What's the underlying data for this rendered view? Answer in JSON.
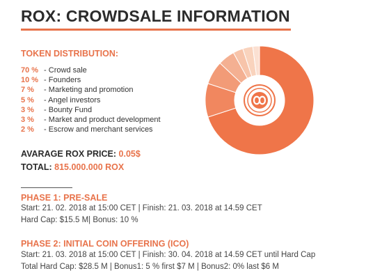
{
  "title": "ROX: CROWDSALE INFORMATION",
  "distribution": {
    "heading": "TOKEN DISTRIBUTION:",
    "items": [
      {
        "pct": "70 %",
        "sep": " - ",
        "label": "Crowd sale"
      },
      {
        "pct": "10 %",
        "sep": " - ",
        "label": "Founders"
      },
      {
        "pct": "7 %",
        "sep": "  - ",
        "label": "Marketing and promotion"
      },
      {
        "pct": "5 %",
        "sep": "  - ",
        "label": "Angel investors"
      },
      {
        "pct": "3 %",
        "sep": "  - ",
        "label": "Bounty Fund"
      },
      {
        "pct": "3 %",
        "sep": "  - ",
        "label": "Market and product development"
      },
      {
        "pct": "2 %",
        "sep": "  - ",
        "label": "Escrow and merchant services"
      }
    ]
  },
  "avg_price": {
    "label": "AVARAGE ROX PRICE: ",
    "value": "0.05$"
  },
  "total": {
    "label": "TOTAL: ",
    "value": "815.000.000 ROX"
  },
  "phase1": {
    "heading": "PHASE 1: PRE-SALE",
    "line1": "Start: 21. 02. 2018 at 15:00 CET | Finish: 21. 03. 2018 at 14.59 CET",
    "line2": "Hard Cap: $15.5 M|  Bonus: 10 %"
  },
  "phase2": {
    "heading": "PHASE 2: INITIAL COIN OFFERING (ICO)",
    "line1": "Start: 21. 03. 2018 at 15:00 CET | Finish: 30. 04. 2018 at 14.59 CET until Hard Cap",
    "line2": "Total Hard Cap: $28.5 M | Bonus1: 5 % first $7 M | Bonus2: 0% last $6 M"
  },
  "chart_data": {
    "type": "pie",
    "style": "donut",
    "values": [
      70,
      10,
      7,
      5,
      3,
      3,
      2
    ],
    "colors": [
      "#ef7549",
      "#f1875f",
      "#f29b77",
      "#f4b092",
      "#f7c4aa",
      "#f9d3bd",
      "#fbe0d2"
    ],
    "center_icon": "rox-logo-icon"
  }
}
